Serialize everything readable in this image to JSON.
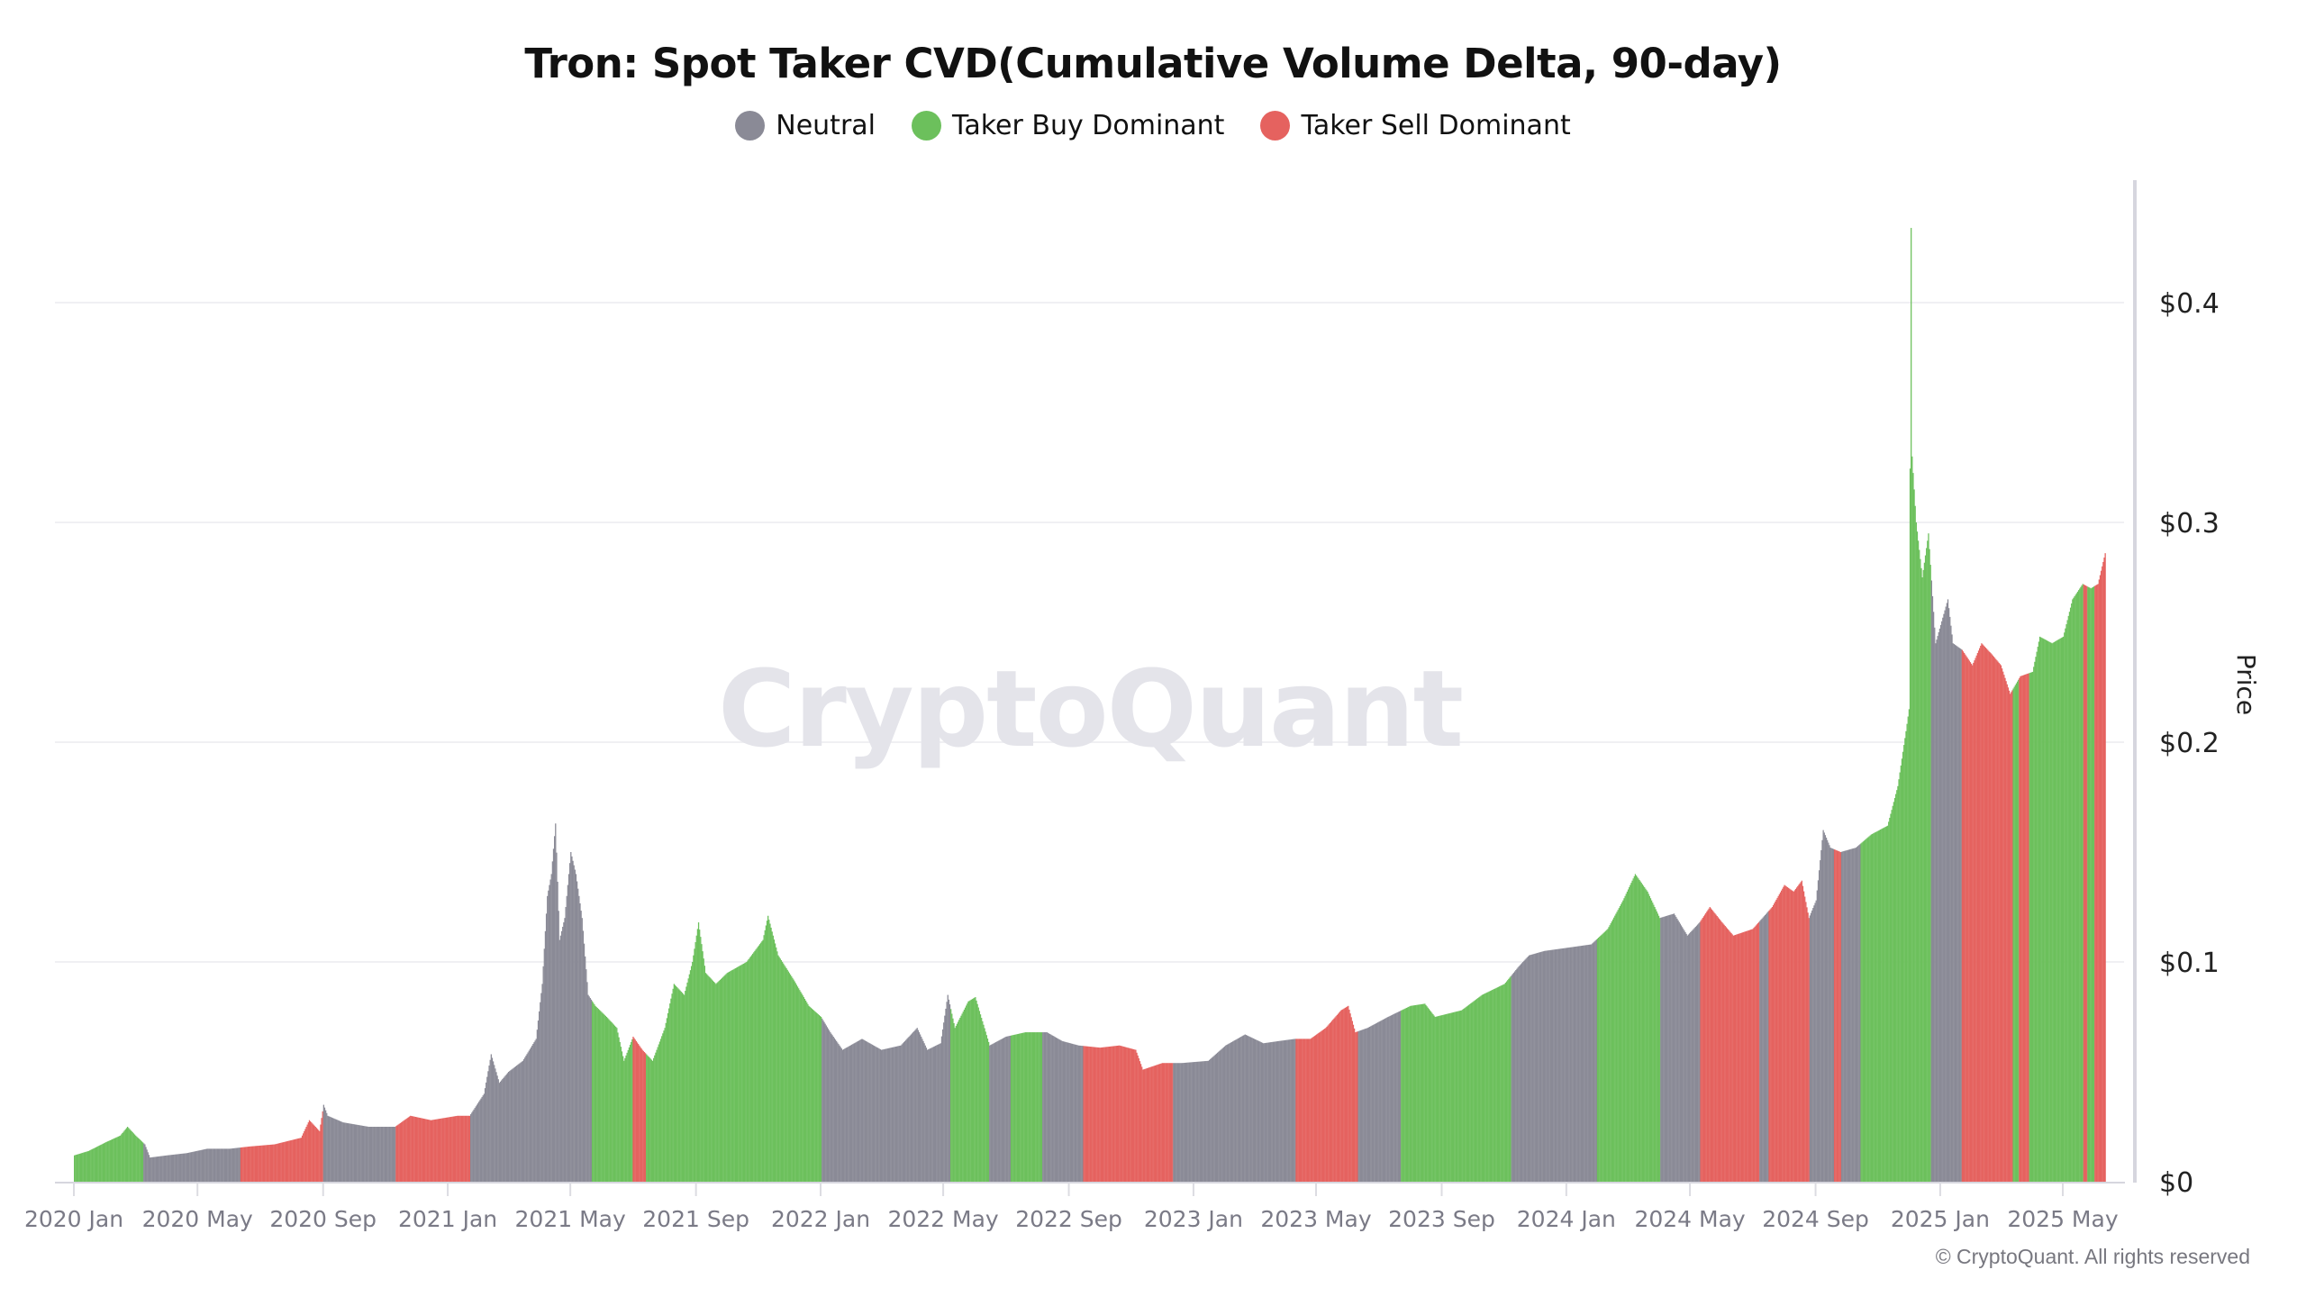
{
  "chart_data": {
    "type": "bar",
    "title": "Tron: Spot Taker CVD(Cumulative Volume Delta, 90-day)",
    "ylabel": "Price",
    "xlabel": "",
    "ylim": [
      0,
      0.45
    ],
    "grid": true,
    "legend_placement": "top-center",
    "watermark": "CryptoQuant",
    "copyright": "© CryptoQuant. All rights reserved",
    "x_start": "2020-01-01",
    "x_end": "2025-06-11",
    "y_ticks": [
      {
        "value": 0,
        "label": "$0"
      },
      {
        "value": 0.1,
        "label": "$0.1"
      },
      {
        "value": 0.2,
        "label": "$0.2"
      },
      {
        "value": 0.3,
        "label": "$0.3"
      },
      {
        "value": 0.4,
        "label": "$0.4"
      }
    ],
    "x_ticks": [
      {
        "date": "2020-01-01",
        "label": "2020 Jan"
      },
      {
        "date": "2020-05-01",
        "label": "2020 May"
      },
      {
        "date": "2020-09-01",
        "label": "2020 Sep"
      },
      {
        "date": "2021-01-01",
        "label": "2021 Jan"
      },
      {
        "date": "2021-05-01",
        "label": "2021 May"
      },
      {
        "date": "2021-09-01",
        "label": "2021 Sep"
      },
      {
        "date": "2022-01-01",
        "label": "2022 Jan"
      },
      {
        "date": "2022-05-01",
        "label": "2022 May"
      },
      {
        "date": "2022-09-01",
        "label": "2022 Sep"
      },
      {
        "date": "2023-01-01",
        "label": "2023 Jan"
      },
      {
        "date": "2023-05-01",
        "label": "2023 May"
      },
      {
        "date": "2023-09-01",
        "label": "2023 Sep"
      },
      {
        "date": "2024-01-01",
        "label": "2024 Jan"
      },
      {
        "date": "2024-05-01",
        "label": "2024 May"
      },
      {
        "date": "2024-09-01",
        "label": "2024 Sep"
      },
      {
        "date": "2025-01-01",
        "label": "2025 Jan"
      },
      {
        "date": "2025-05-01",
        "label": "2025 May"
      }
    ],
    "legend": [
      {
        "key": "neutral",
        "label": "Neutral",
        "color": "#8a8a96"
      },
      {
        "key": "buy",
        "label": "Taker Buy Dominant",
        "color": "#6cc05c"
      },
      {
        "key": "sell",
        "label": "Taker Sell Dominant",
        "color": "#e5625f"
      }
    ],
    "price_keyframes": [
      [
        "2020-01-01",
        0.012
      ],
      [
        "2020-01-15",
        0.014
      ],
      [
        "2020-02-01",
        0.018
      ],
      [
        "2020-02-15",
        0.021
      ],
      [
        "2020-02-22",
        0.025
      ],
      [
        "2020-03-01",
        0.021
      ],
      [
        "2020-03-10",
        0.017
      ],
      [
        "2020-03-15",
        0.011
      ],
      [
        "2020-04-01",
        0.012
      ],
      [
        "2020-04-20",
        0.013
      ],
      [
        "2020-05-10",
        0.015
      ],
      [
        "2020-06-01",
        0.015
      ],
      [
        "2020-06-20",
        0.016
      ],
      [
        "2020-07-15",
        0.017
      ],
      [
        "2020-08-10",
        0.02
      ],
      [
        "2020-08-18",
        0.028
      ],
      [
        "2020-08-28",
        0.023
      ],
      [
        "2020-09-01",
        0.035
      ],
      [
        "2020-09-05",
        0.03
      ],
      [
        "2020-09-20",
        0.027
      ],
      [
        "2020-10-15",
        0.025
      ],
      [
        "2020-11-10",
        0.025
      ],
      [
        "2020-11-25",
        0.03
      ],
      [
        "2020-12-15",
        0.028
      ],
      [
        "2021-01-10",
        0.03
      ],
      [
        "2021-01-22",
        0.03
      ],
      [
        "2021-02-05",
        0.04
      ],
      [
        "2021-02-12",
        0.058
      ],
      [
        "2021-02-20",
        0.045
      ],
      [
        "2021-03-01",
        0.05
      ],
      [
        "2021-03-15",
        0.055
      ],
      [
        "2021-03-28",
        0.065
      ],
      [
        "2021-04-03",
        0.09
      ],
      [
        "2021-04-08",
        0.13
      ],
      [
        "2021-04-12",
        0.14
      ],
      [
        "2021-04-16",
        0.163
      ],
      [
        "2021-04-20",
        0.11
      ],
      [
        "2021-04-25",
        0.12
      ],
      [
        "2021-05-01",
        0.15
      ],
      [
        "2021-05-06",
        0.14
      ],
      [
        "2021-05-12",
        0.12
      ],
      [
        "2021-05-18",
        0.085
      ],
      [
        "2021-05-25",
        0.08
      ],
      [
        "2021-06-05",
        0.075
      ],
      [
        "2021-06-15",
        0.07
      ],
      [
        "2021-06-22",
        0.055
      ],
      [
        "2021-07-01",
        0.066
      ],
      [
        "2021-07-10",
        0.06
      ],
      [
        "2021-07-20",
        0.055
      ],
      [
        "2021-08-01",
        0.07
      ],
      [
        "2021-08-10",
        0.09
      ],
      [
        "2021-08-20",
        0.085
      ],
      [
        "2021-08-28",
        0.1
      ],
      [
        "2021-09-03",
        0.118
      ],
      [
        "2021-09-10",
        0.095
      ],
      [
        "2021-09-20",
        0.09
      ],
      [
        "2021-10-01",
        0.095
      ],
      [
        "2021-10-20",
        0.1
      ],
      [
        "2021-11-05",
        0.11
      ],
      [
        "2021-11-10",
        0.121
      ],
      [
        "2021-11-20",
        0.103
      ],
      [
        "2021-12-05",
        0.092
      ],
      [
        "2021-12-20",
        0.08
      ],
      [
        "2022-01-01",
        0.075
      ],
      [
        "2022-01-10",
        0.068
      ],
      [
        "2022-01-22",
        0.06
      ],
      [
        "2022-02-10",
        0.065
      ],
      [
        "2022-03-01",
        0.06
      ],
      [
        "2022-03-20",
        0.062
      ],
      [
        "2022-04-05",
        0.07
      ],
      [
        "2022-04-15",
        0.06
      ],
      [
        "2022-04-28",
        0.063
      ],
      [
        "2022-05-05",
        0.085
      ],
      [
        "2022-05-12",
        0.07
      ],
      [
        "2022-05-25",
        0.082
      ],
      [
        "2022-06-01",
        0.084
      ],
      [
        "2022-06-15",
        0.062
      ],
      [
        "2022-07-01",
        0.066
      ],
      [
        "2022-07-20",
        0.068
      ],
      [
        "2022-08-10",
        0.068
      ],
      [
        "2022-08-25",
        0.064
      ],
      [
        "2022-09-10",
        0.062
      ],
      [
        "2022-10-01",
        0.061
      ],
      [
        "2022-10-20",
        0.062
      ],
      [
        "2022-11-05",
        0.06
      ],
      [
        "2022-11-12",
        0.051
      ],
      [
        "2022-12-01",
        0.054
      ],
      [
        "2022-12-20",
        0.054
      ],
      [
        "2023-01-15",
        0.055
      ],
      [
        "2023-02-01",
        0.062
      ],
      [
        "2023-02-20",
        0.067
      ],
      [
        "2023-03-10",
        0.063
      ],
      [
        "2023-03-25",
        0.064
      ],
      [
        "2023-04-10",
        0.065
      ],
      [
        "2023-04-25",
        0.065
      ],
      [
        "2023-05-10",
        0.07
      ],
      [
        "2023-05-25",
        0.078
      ],
      [
        "2023-06-01",
        0.08
      ],
      [
        "2023-06-08",
        0.068
      ],
      [
        "2023-06-20",
        0.07
      ],
      [
        "2023-07-10",
        0.075
      ],
      [
        "2023-08-01",
        0.08
      ],
      [
        "2023-08-15",
        0.081
      ],
      [
        "2023-08-25",
        0.075
      ],
      [
        "2023-09-20",
        0.078
      ],
      [
        "2023-10-10",
        0.085
      ],
      [
        "2023-11-01",
        0.09
      ],
      [
        "2023-11-15",
        0.098
      ],
      [
        "2023-11-25",
        0.103
      ],
      [
        "2023-12-10",
        0.105
      ],
      [
        "2024-01-10",
        0.107
      ],
      [
        "2024-01-25",
        0.108
      ],
      [
        "2024-02-10",
        0.115
      ],
      [
        "2024-02-25",
        0.128
      ],
      [
        "2024-03-08",
        0.14
      ],
      [
        "2024-03-20",
        0.132
      ],
      [
        "2024-04-01",
        0.12
      ],
      [
        "2024-04-15",
        0.122
      ],
      [
        "2024-04-28",
        0.112
      ],
      [
        "2024-05-10",
        0.118
      ],
      [
        "2024-05-20",
        0.125
      ],
      [
        "2024-06-01",
        0.118
      ],
      [
        "2024-06-12",
        0.112
      ],
      [
        "2024-07-01",
        0.115
      ],
      [
        "2024-07-20",
        0.125
      ],
      [
        "2024-08-01",
        0.135
      ],
      [
        "2024-08-10",
        0.132
      ],
      [
        "2024-08-18",
        0.137
      ],
      [
        "2024-08-25",
        0.12
      ],
      [
        "2024-09-01",
        0.128
      ],
      [
        "2024-09-08",
        0.16
      ],
      [
        "2024-09-15",
        0.152
      ],
      [
        "2024-09-25",
        0.15
      ],
      [
        "2024-10-10",
        0.152
      ],
      [
        "2024-10-25",
        0.158
      ],
      [
        "2024-11-10",
        0.162
      ],
      [
        "2024-11-20",
        0.18
      ],
      [
        "2024-11-28",
        0.205
      ],
      [
        "2024-12-01",
        0.215
      ],
      [
        "2024-12-03",
        0.434
      ],
      [
        "2024-12-04",
        0.33
      ],
      [
        "2024-12-08",
        0.3
      ],
      [
        "2024-12-14",
        0.275
      ],
      [
        "2024-12-20",
        0.295
      ],
      [
        "2024-12-27",
        0.245
      ],
      [
        "2025-01-02",
        0.255
      ],
      [
        "2025-01-08",
        0.265
      ],
      [
        "2025-01-13",
        0.245
      ],
      [
        "2025-01-22",
        0.242
      ],
      [
        "2025-02-01",
        0.235
      ],
      [
        "2025-02-10",
        0.245
      ],
      [
        "2025-02-20",
        0.24
      ],
      [
        "2025-03-01",
        0.235
      ],
      [
        "2025-03-10",
        0.222
      ],
      [
        "2025-03-20",
        0.23
      ],
      [
        "2025-04-01",
        0.232
      ],
      [
        "2025-04-08",
        0.248
      ],
      [
        "2025-04-20",
        0.245
      ],
      [
        "2025-05-01",
        0.248
      ],
      [
        "2025-05-10",
        0.265
      ],
      [
        "2025-05-20",
        0.272
      ],
      [
        "2025-05-28",
        0.27
      ],
      [
        "2025-06-04",
        0.272
      ],
      [
        "2025-06-11",
        0.286
      ]
    ],
    "regimes": [
      [
        "2020-01-01",
        "2020-03-08",
        "buy"
      ],
      [
        "2020-03-09",
        "2020-06-11",
        "neutral"
      ],
      [
        "2020-06-12",
        "2020-08-31",
        "sell"
      ],
      [
        "2020-09-01",
        "2020-11-10",
        "neutral"
      ],
      [
        "2020-11-11",
        "2021-01-22",
        "sell"
      ],
      [
        "2021-01-23",
        "2021-05-21",
        "neutral"
      ],
      [
        "2021-05-22",
        "2021-06-30",
        "buy"
      ],
      [
        "2021-07-01",
        "2021-07-13",
        "sell"
      ],
      [
        "2021-07-14",
        "2022-01-01",
        "buy"
      ],
      [
        "2022-01-02",
        "2022-05-07",
        "neutral"
      ],
      [
        "2022-05-08",
        "2022-06-14",
        "buy"
      ],
      [
        "2022-06-15",
        "2022-07-05",
        "neutral"
      ],
      [
        "2022-07-06",
        "2022-08-05",
        "buy"
      ],
      [
        "2022-08-06",
        "2022-09-14",
        "neutral"
      ],
      [
        "2022-09-15",
        "2022-12-11",
        "sell"
      ],
      [
        "2022-12-12",
        "2023-04-10",
        "neutral"
      ],
      [
        "2023-04-11",
        "2023-06-10",
        "sell"
      ],
      [
        "2023-06-11",
        "2023-07-22",
        "neutral"
      ],
      [
        "2023-07-23",
        "2023-11-07",
        "buy"
      ],
      [
        "2023-11-08",
        "2024-01-30",
        "neutral"
      ],
      [
        "2024-01-31",
        "2024-04-01",
        "buy"
      ],
      [
        "2024-04-02",
        "2024-05-10",
        "neutral"
      ],
      [
        "2024-05-11",
        "2024-07-07",
        "sell"
      ],
      [
        "2024-07-08",
        "2024-07-16",
        "neutral"
      ],
      [
        "2024-07-17",
        "2024-08-25",
        "sell"
      ],
      [
        "2024-08-26",
        "2024-09-18",
        "neutral"
      ],
      [
        "2024-09-19",
        "2024-09-25",
        "sell"
      ],
      [
        "2024-09-26",
        "2024-10-14",
        "neutral"
      ],
      [
        "2024-10-15",
        "2024-12-22",
        "buy"
      ],
      [
        "2024-12-23",
        "2025-01-21",
        "neutral"
      ],
      [
        "2025-01-22",
        "2025-03-12",
        "sell"
      ],
      [
        "2025-03-13",
        "2025-03-18",
        "buy"
      ],
      [
        "2025-03-19",
        "2025-03-28",
        "sell"
      ],
      [
        "2025-03-29",
        "2025-05-20",
        "buy"
      ],
      [
        "2025-05-21",
        "2025-05-24",
        "sell"
      ],
      [
        "2025-05-25",
        "2025-05-31",
        "buy"
      ],
      [
        "2025-06-01",
        "2025-06-11",
        "sell"
      ]
    ]
  }
}
